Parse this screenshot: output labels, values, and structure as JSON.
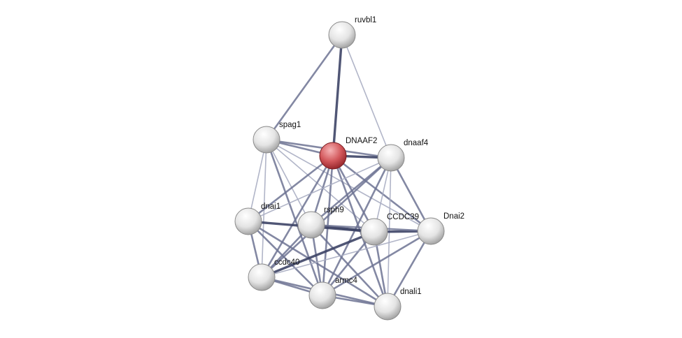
{
  "network": {
    "colors": {
      "query_node": "#c9454a",
      "node": "#e6e6e6",
      "edge_dark": "#3d4466",
      "edge_light": "#a9adc2"
    },
    "nodes": [
      {
        "id": "ruvbl1",
        "label": "ruvbl1",
        "query": false
      },
      {
        "id": "spag1",
        "label": "spag1",
        "query": false
      },
      {
        "id": "DNAAF2",
        "label": "DNAAF2",
        "query": true
      },
      {
        "id": "dnaaf4",
        "label": "dnaaf4",
        "query": false
      },
      {
        "id": "dnai1",
        "label": "dnai1",
        "query": false
      },
      {
        "id": "rsph9",
        "label": "rsph9",
        "query": false
      },
      {
        "id": "CCDC39",
        "label": "CCDC39",
        "query": false
      },
      {
        "id": "Dnai2",
        "label": "Dnai2",
        "query": false
      },
      {
        "id": "ccdc40",
        "label": "ccdc40",
        "query": false
      },
      {
        "id": "armc4",
        "label": "armc4",
        "query": false
      },
      {
        "id": "dnali1",
        "label": "dnali1",
        "query": false
      }
    ],
    "edges": [
      [
        "ruvbl1",
        "spag1",
        2
      ],
      [
        "ruvbl1",
        "DNAAF2",
        3
      ],
      [
        "ruvbl1",
        "dnaaf4",
        1
      ],
      [
        "spag1",
        "DNAAF2",
        2
      ],
      [
        "spag1",
        "dnaaf4",
        2
      ],
      [
        "spag1",
        "dnai1",
        1
      ],
      [
        "spag1",
        "rsph9",
        1
      ],
      [
        "spag1",
        "CCDC39",
        1
      ],
      [
        "spag1",
        "Dnai2",
        1
      ],
      [
        "spag1",
        "ccdc40",
        1
      ],
      [
        "spag1",
        "armc4",
        2
      ],
      [
        "DNAAF2",
        "dnaaf4",
        3
      ],
      [
        "DNAAF2",
        "dnai1",
        2
      ],
      [
        "DNAAF2",
        "rsph9",
        2
      ],
      [
        "DNAAF2",
        "CCDC39",
        2
      ],
      [
        "DNAAF2",
        "Dnai2",
        2
      ],
      [
        "DNAAF2",
        "ccdc40",
        2
      ],
      [
        "DNAAF2",
        "armc4",
        2
      ],
      [
        "DNAAF2",
        "dnali1",
        2
      ],
      [
        "dnaaf4",
        "dnai1",
        1
      ],
      [
        "dnaaf4",
        "rsph9",
        2
      ],
      [
        "dnaaf4",
        "CCDC39",
        1
      ],
      [
        "dnaaf4",
        "Dnai2",
        2
      ],
      [
        "dnaaf4",
        "ccdc40",
        2
      ],
      [
        "dnaaf4",
        "armc4",
        2
      ],
      [
        "dnaaf4",
        "dnali1",
        1
      ],
      [
        "dnai1",
        "CCDC39",
        3
      ],
      [
        "rsph9",
        "CCDC39",
        3
      ],
      [
        "CCDC39",
        "Dnai2",
        3
      ],
      [
        "rsph9",
        "Dnai2",
        2
      ],
      [
        "dnai1",
        "ccdc40",
        2
      ],
      [
        "dnai1",
        "armc4",
        2
      ],
      [
        "dnai1",
        "dnali1",
        2
      ],
      [
        "rsph9",
        "ccdc40",
        2
      ],
      [
        "rsph9",
        "armc4",
        2
      ],
      [
        "rsph9",
        "dnali1",
        2
      ],
      [
        "CCDC39",
        "ccdc40",
        3
      ],
      [
        "CCDC39",
        "armc4",
        2
      ],
      [
        "CCDC39",
        "dnali1",
        2
      ],
      [
        "Dnai2",
        "ccdc40",
        1
      ],
      [
        "Dnai2",
        "armc4",
        2
      ],
      [
        "Dnai2",
        "dnali1",
        2
      ],
      [
        "ccdc40",
        "armc4",
        2
      ],
      [
        "ccdc40",
        "dnali1",
        2
      ],
      [
        "armc4",
        "dnali1",
        2
      ]
    ]
  }
}
